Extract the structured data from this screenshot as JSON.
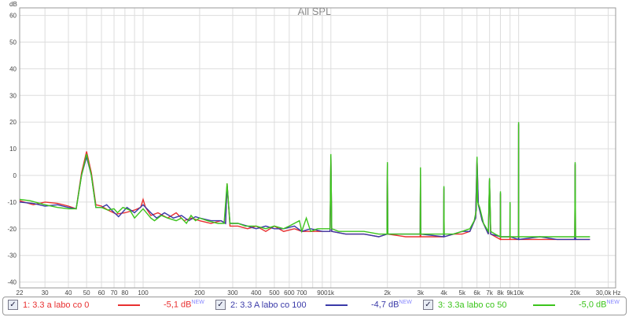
{
  "chart_data": {
    "type": "line",
    "title": "All SPL",
    "ylabel": "dB",
    "xlabel": "Hz",
    "xscale": "log",
    "xlim": [
      22,
      30000
    ],
    "ylim": [
      -42,
      64
    ],
    "grid": true,
    "yticks": [
      60,
      50,
      40,
      30,
      20,
      10,
      0,
      -10,
      -20,
      -30,
      -40
    ],
    "xticks": [
      {
        "v": 22,
        "l": "22"
      },
      {
        "v": 30,
        "l": "30"
      },
      {
        "v": 40,
        "l": "40"
      },
      {
        "v": 50,
        "l": "50"
      },
      {
        "v": 60,
        "l": "60"
      },
      {
        "v": 70,
        "l": "70"
      },
      {
        "v": 80,
        "l": "80"
      },
      {
        "v": 100,
        "l": "100"
      },
      {
        "v": 200,
        "l": "200"
      },
      {
        "v": 300,
        "l": "300"
      },
      {
        "v": 400,
        "l": "400"
      },
      {
        "v": 500,
        "l": "500"
      },
      {
        "v": 600,
        "l": "600"
      },
      {
        "v": 700,
        "l": "700"
      },
      {
        "v": 900,
        "l": "900"
      },
      {
        "v": 1000,
        "l": "1k"
      },
      {
        "v": 2000,
        "l": "2k"
      },
      {
        "v": 3000,
        "l": "3k"
      },
      {
        "v": 4000,
        "l": "4k"
      },
      {
        "v": 5000,
        "l": "5k"
      },
      {
        "v": 6000,
        "l": "6k"
      },
      {
        "v": 7000,
        "l": "7k"
      },
      {
        "v": 8000,
        "l": "8k"
      },
      {
        "v": 9000,
        "l": "9k"
      },
      {
        "v": 10000,
        "l": "10k"
      },
      {
        "v": 20000,
        "l": "20k"
      },
      {
        "v": 30000,
        "l": "30,0k Hz"
      }
    ],
    "series": [
      {
        "name": "1: 3.3 a labo co 0",
        "color": "#e83030",
        "value": "-5,1 dB",
        "badge": "NEW",
        "checked": true,
        "points": [
          [
            22,
            -9.5
          ],
          [
            26,
            -11
          ],
          [
            30,
            -10
          ],
          [
            35,
            -10.5
          ],
          [
            40,
            -11.5
          ],
          [
            44,
            -12.5
          ],
          [
            47,
            1
          ],
          [
            50,
            9
          ],
          [
            53,
            1
          ],
          [
            56,
            -11
          ],
          [
            60,
            -11.5
          ],
          [
            65,
            -13
          ],
          [
            72,
            -14.5
          ],
          [
            80,
            -14
          ],
          [
            90,
            -13
          ],
          [
            97,
            -12
          ],
          [
            100,
            -9
          ],
          [
            103,
            -12
          ],
          [
            110,
            -15
          ],
          [
            120,
            -14
          ],
          [
            135,
            -16
          ],
          [
            150,
            -14
          ],
          [
            165,
            -17
          ],
          [
            180,
            -16
          ],
          [
            200,
            -17
          ],
          [
            230,
            -18
          ],
          [
            260,
            -17
          ],
          [
            275,
            -18
          ],
          [
            280,
            -3
          ],
          [
            290,
            -19
          ],
          [
            320,
            -19
          ],
          [
            360,
            -20
          ],
          [
            400,
            -19
          ],
          [
            450,
            -21
          ],
          [
            500,
            -19
          ],
          [
            560,
            -21
          ],
          [
            640,
            -20
          ],
          [
            700,
            -21
          ],
          [
            780,
            -21
          ],
          [
            900,
            -21
          ],
          [
            990,
            -21
          ],
          [
            1000,
            7
          ],
          [
            1010,
            -21
          ],
          [
            1200,
            -22
          ],
          [
            1500,
            -22
          ],
          [
            1800,
            -23
          ],
          [
            1990,
            -22
          ],
          [
            2000,
            4
          ],
          [
            2010,
            -22
          ],
          [
            2500,
            -23
          ],
          [
            2990,
            -23
          ],
          [
            3000,
            2
          ],
          [
            3010,
            -23
          ],
          [
            3990,
            -23
          ],
          [
            4000,
            -5
          ],
          [
            4010,
            -23
          ],
          [
            4500,
            -22
          ],
          [
            5000,
            -22
          ],
          [
            5500,
            -21
          ],
          [
            5900,
            -16
          ],
          [
            6000,
            6
          ],
          [
            6100,
            -11
          ],
          [
            6400,
            -17
          ],
          [
            6900,
            -22
          ],
          [
            7000,
            -2
          ],
          [
            7100,
            -22
          ],
          [
            7990,
            -24
          ],
          [
            8000,
            -7
          ],
          [
            8010,
            -24
          ],
          [
            8990,
            -24
          ],
          [
            9000,
            -11
          ],
          [
            9010,
            -24
          ],
          [
            9990,
            -24
          ],
          [
            10000,
            19
          ],
          [
            10010,
            -24
          ],
          [
            13000,
            -24
          ],
          [
            16000,
            -24
          ],
          [
            19900,
            -24
          ],
          [
            20000,
            4
          ],
          [
            20100,
            -24
          ],
          [
            24000,
            -24
          ]
        ]
      },
      {
        "name": "2: 3.3 A labo co 100",
        "color": "#3a3aa8",
        "value": "-4,7 dB",
        "badge": "NEW",
        "checked": true,
        "points": [
          [
            22,
            -10
          ],
          [
            26,
            -10.5
          ],
          [
            30,
            -11.5
          ],
          [
            35,
            -11
          ],
          [
            40,
            -12
          ],
          [
            44,
            -12.5
          ],
          [
            47,
            0
          ],
          [
            50,
            7
          ],
          [
            53,
            0
          ],
          [
            56,
            -12
          ],
          [
            60,
            -12
          ],
          [
            64,
            -11
          ],
          [
            68,
            -13
          ],
          [
            74,
            -15.5
          ],
          [
            82,
            -12
          ],
          [
            90,
            -14
          ],
          [
            100,
            -11
          ],
          [
            110,
            -14
          ],
          [
            118,
            -16
          ],
          [
            130,
            -14
          ],
          [
            145,
            -16
          ],
          [
            160,
            -15
          ],
          [
            175,
            -17
          ],
          [
            190,
            -15.5
          ],
          [
            200,
            -16
          ],
          [
            230,
            -17
          ],
          [
            260,
            -17
          ],
          [
            275,
            -18
          ],
          [
            280,
            -3.5
          ],
          [
            290,
            -18
          ],
          [
            320,
            -18
          ],
          [
            360,
            -19
          ],
          [
            400,
            -20
          ],
          [
            450,
            -19
          ],
          [
            500,
            -20
          ],
          [
            560,
            -20
          ],
          [
            640,
            -19
          ],
          [
            700,
            -21
          ],
          [
            780,
            -20
          ],
          [
            900,
            -21
          ],
          [
            990,
            -21
          ],
          [
            1000,
            7.5
          ],
          [
            1010,
            -21
          ],
          [
            1200,
            -22
          ],
          [
            1500,
            -22
          ],
          [
            1800,
            -23
          ],
          [
            1990,
            -22
          ],
          [
            2000,
            4.5
          ],
          [
            2010,
            -22
          ],
          [
            2500,
            -22
          ],
          [
            2990,
            -22
          ],
          [
            3000,
            2.5
          ],
          [
            3010,
            -22
          ],
          [
            3990,
            -23
          ],
          [
            4000,
            -4.5
          ],
          [
            4010,
            -23
          ],
          [
            4500,
            -22
          ],
          [
            5000,
            -21
          ],
          [
            5500,
            -21
          ],
          [
            5900,
            -16
          ],
          [
            6000,
            6.5
          ],
          [
            6100,
            -11
          ],
          [
            6400,
            -17
          ],
          [
            6900,
            -22
          ],
          [
            7000,
            -1.5
          ],
          [
            7100,
            -22
          ],
          [
            7990,
            -23
          ],
          [
            8000,
            -6.5
          ],
          [
            8010,
            -23
          ],
          [
            8990,
            -23
          ],
          [
            9000,
            -10.5
          ],
          [
            9010,
            -23
          ],
          [
            9990,
            -24
          ],
          [
            10000,
            19.5
          ],
          [
            10010,
            -24
          ],
          [
            13000,
            -23
          ],
          [
            16000,
            -24
          ],
          [
            19900,
            -24
          ],
          [
            20000,
            4.5
          ],
          [
            20100,
            -24
          ],
          [
            24000,
            -24
          ]
        ]
      },
      {
        "name": "3: 3.3a labo co 50",
        "color": "#3cc41c",
        "value": "-5,0 dB",
        "badge": "NEW",
        "checked": true,
        "points": [
          [
            22,
            -9
          ],
          [
            25,
            -9.5
          ],
          [
            30,
            -11
          ],
          [
            35,
            -12
          ],
          [
            40,
            -12.5
          ],
          [
            44,
            -12.5
          ],
          [
            47,
            0
          ],
          [
            50,
            8
          ],
          [
            53,
            0
          ],
          [
            56,
            -12
          ],
          [
            60,
            -12
          ],
          [
            65,
            -13
          ],
          [
            70,
            -12.5
          ],
          [
            73,
            -14
          ],
          [
            78,
            -12
          ],
          [
            85,
            -13
          ],
          [
            90,
            -16
          ],
          [
            100,
            -12.5
          ],
          [
            110,
            -16
          ],
          [
            115,
            -17
          ],
          [
            125,
            -15
          ],
          [
            135,
            -16
          ],
          [
            150,
            -17
          ],
          [
            160,
            -16
          ],
          [
            170,
            -18
          ],
          [
            180,
            -15
          ],
          [
            190,
            -17
          ],
          [
            200,
            -16
          ],
          [
            220,
            -17
          ],
          [
            250,
            -18
          ],
          [
            270,
            -18
          ],
          [
            280,
            -3
          ],
          [
            290,
            -18
          ],
          [
            320,
            -18
          ],
          [
            350,
            -19
          ],
          [
            400,
            -19
          ],
          [
            450,
            -20
          ],
          [
            500,
            -19
          ],
          [
            560,
            -20
          ],
          [
            600,
            -19
          ],
          [
            680,
            -17
          ],
          [
            700,
            -21
          ],
          [
            740,
            -16
          ],
          [
            780,
            -21
          ],
          [
            850,
            -20
          ],
          [
            990,
            -20
          ],
          [
            1000,
            8
          ],
          [
            1010,
            -20
          ],
          [
            1100,
            -21
          ],
          [
            1300,
            -21
          ],
          [
            1500,
            -21
          ],
          [
            1800,
            -22
          ],
          [
            1990,
            -22
          ],
          [
            2000,
            5
          ],
          [
            2010,
            -22
          ],
          [
            2500,
            -22
          ],
          [
            2990,
            -22
          ],
          [
            3000,
            3
          ],
          [
            3010,
            -22
          ],
          [
            3500,
            -22
          ],
          [
            3990,
            -22
          ],
          [
            4000,
            -4
          ],
          [
            4010,
            -22
          ],
          [
            4500,
            -22
          ],
          [
            5000,
            -21
          ],
          [
            5500,
            -20
          ],
          [
            5800,
            -17
          ],
          [
            5950,
            -13
          ],
          [
            6000,
            7
          ],
          [
            6050,
            -10
          ],
          [
            6200,
            -12
          ],
          [
            6500,
            -18
          ],
          [
            6900,
            -21
          ],
          [
            7000,
            -1
          ],
          [
            7100,
            -21
          ],
          [
            7500,
            -22
          ],
          [
            7990,
            -23
          ],
          [
            8000,
            -6
          ],
          [
            8010,
            -23
          ],
          [
            8990,
            -23
          ],
          [
            9000,
            -10
          ],
          [
            9010,
            -23
          ],
          [
            9500,
            -23
          ],
          [
            9990,
            -23
          ],
          [
            10000,
            20
          ],
          [
            10010,
            -23
          ],
          [
            12000,
            -23
          ],
          [
            15000,
            -23
          ],
          [
            19900,
            -23
          ],
          [
            20000,
            5
          ],
          [
            20100,
            -23
          ],
          [
            24000,
            -23
          ]
        ]
      }
    ]
  }
}
